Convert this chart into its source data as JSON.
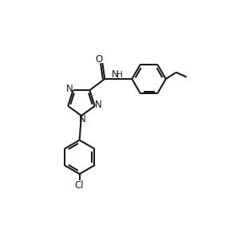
{
  "line_color": "#1a1a1a",
  "bond_width": 1.5,
  "background_color": "#ffffff",
  "figsize": [
    3.07,
    3.06
  ],
  "dpi": 100,
  "xlim": [
    0,
    10
  ],
  "ylim": [
    0,
    10
  ],
  "font_size": 8.5
}
